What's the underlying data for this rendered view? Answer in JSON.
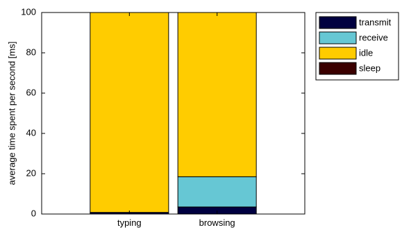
{
  "chart_data": {
    "type": "bar",
    "stacked": true,
    "categories": [
      "typing",
      "browsing"
    ],
    "series": [
      {
        "name": "sleep",
        "values": [
          0,
          0
        ],
        "color": "#3b0000"
      },
      {
        "name": "transmit",
        "values": [
          0.8,
          3.5
        ],
        "color": "#000040"
      },
      {
        "name": "receive",
        "values": [
          0,
          15
        ],
        "color": "#66c7d4"
      },
      {
        "name": "idle",
        "values": [
          99.2,
          81.5
        ],
        "color": "#ffcc00"
      }
    ],
    "legend_order": [
      "transmit",
      "receive",
      "idle",
      "sleep"
    ],
    "ylabel": "average time spent per second [ms]",
    "xlabel": "",
    "ylim": [
      0,
      100
    ],
    "yticks": [
      "0",
      "20",
      "40",
      "60",
      "80",
      "100"
    ],
    "grid": false,
    "legend_position": "outside-top-right"
  }
}
